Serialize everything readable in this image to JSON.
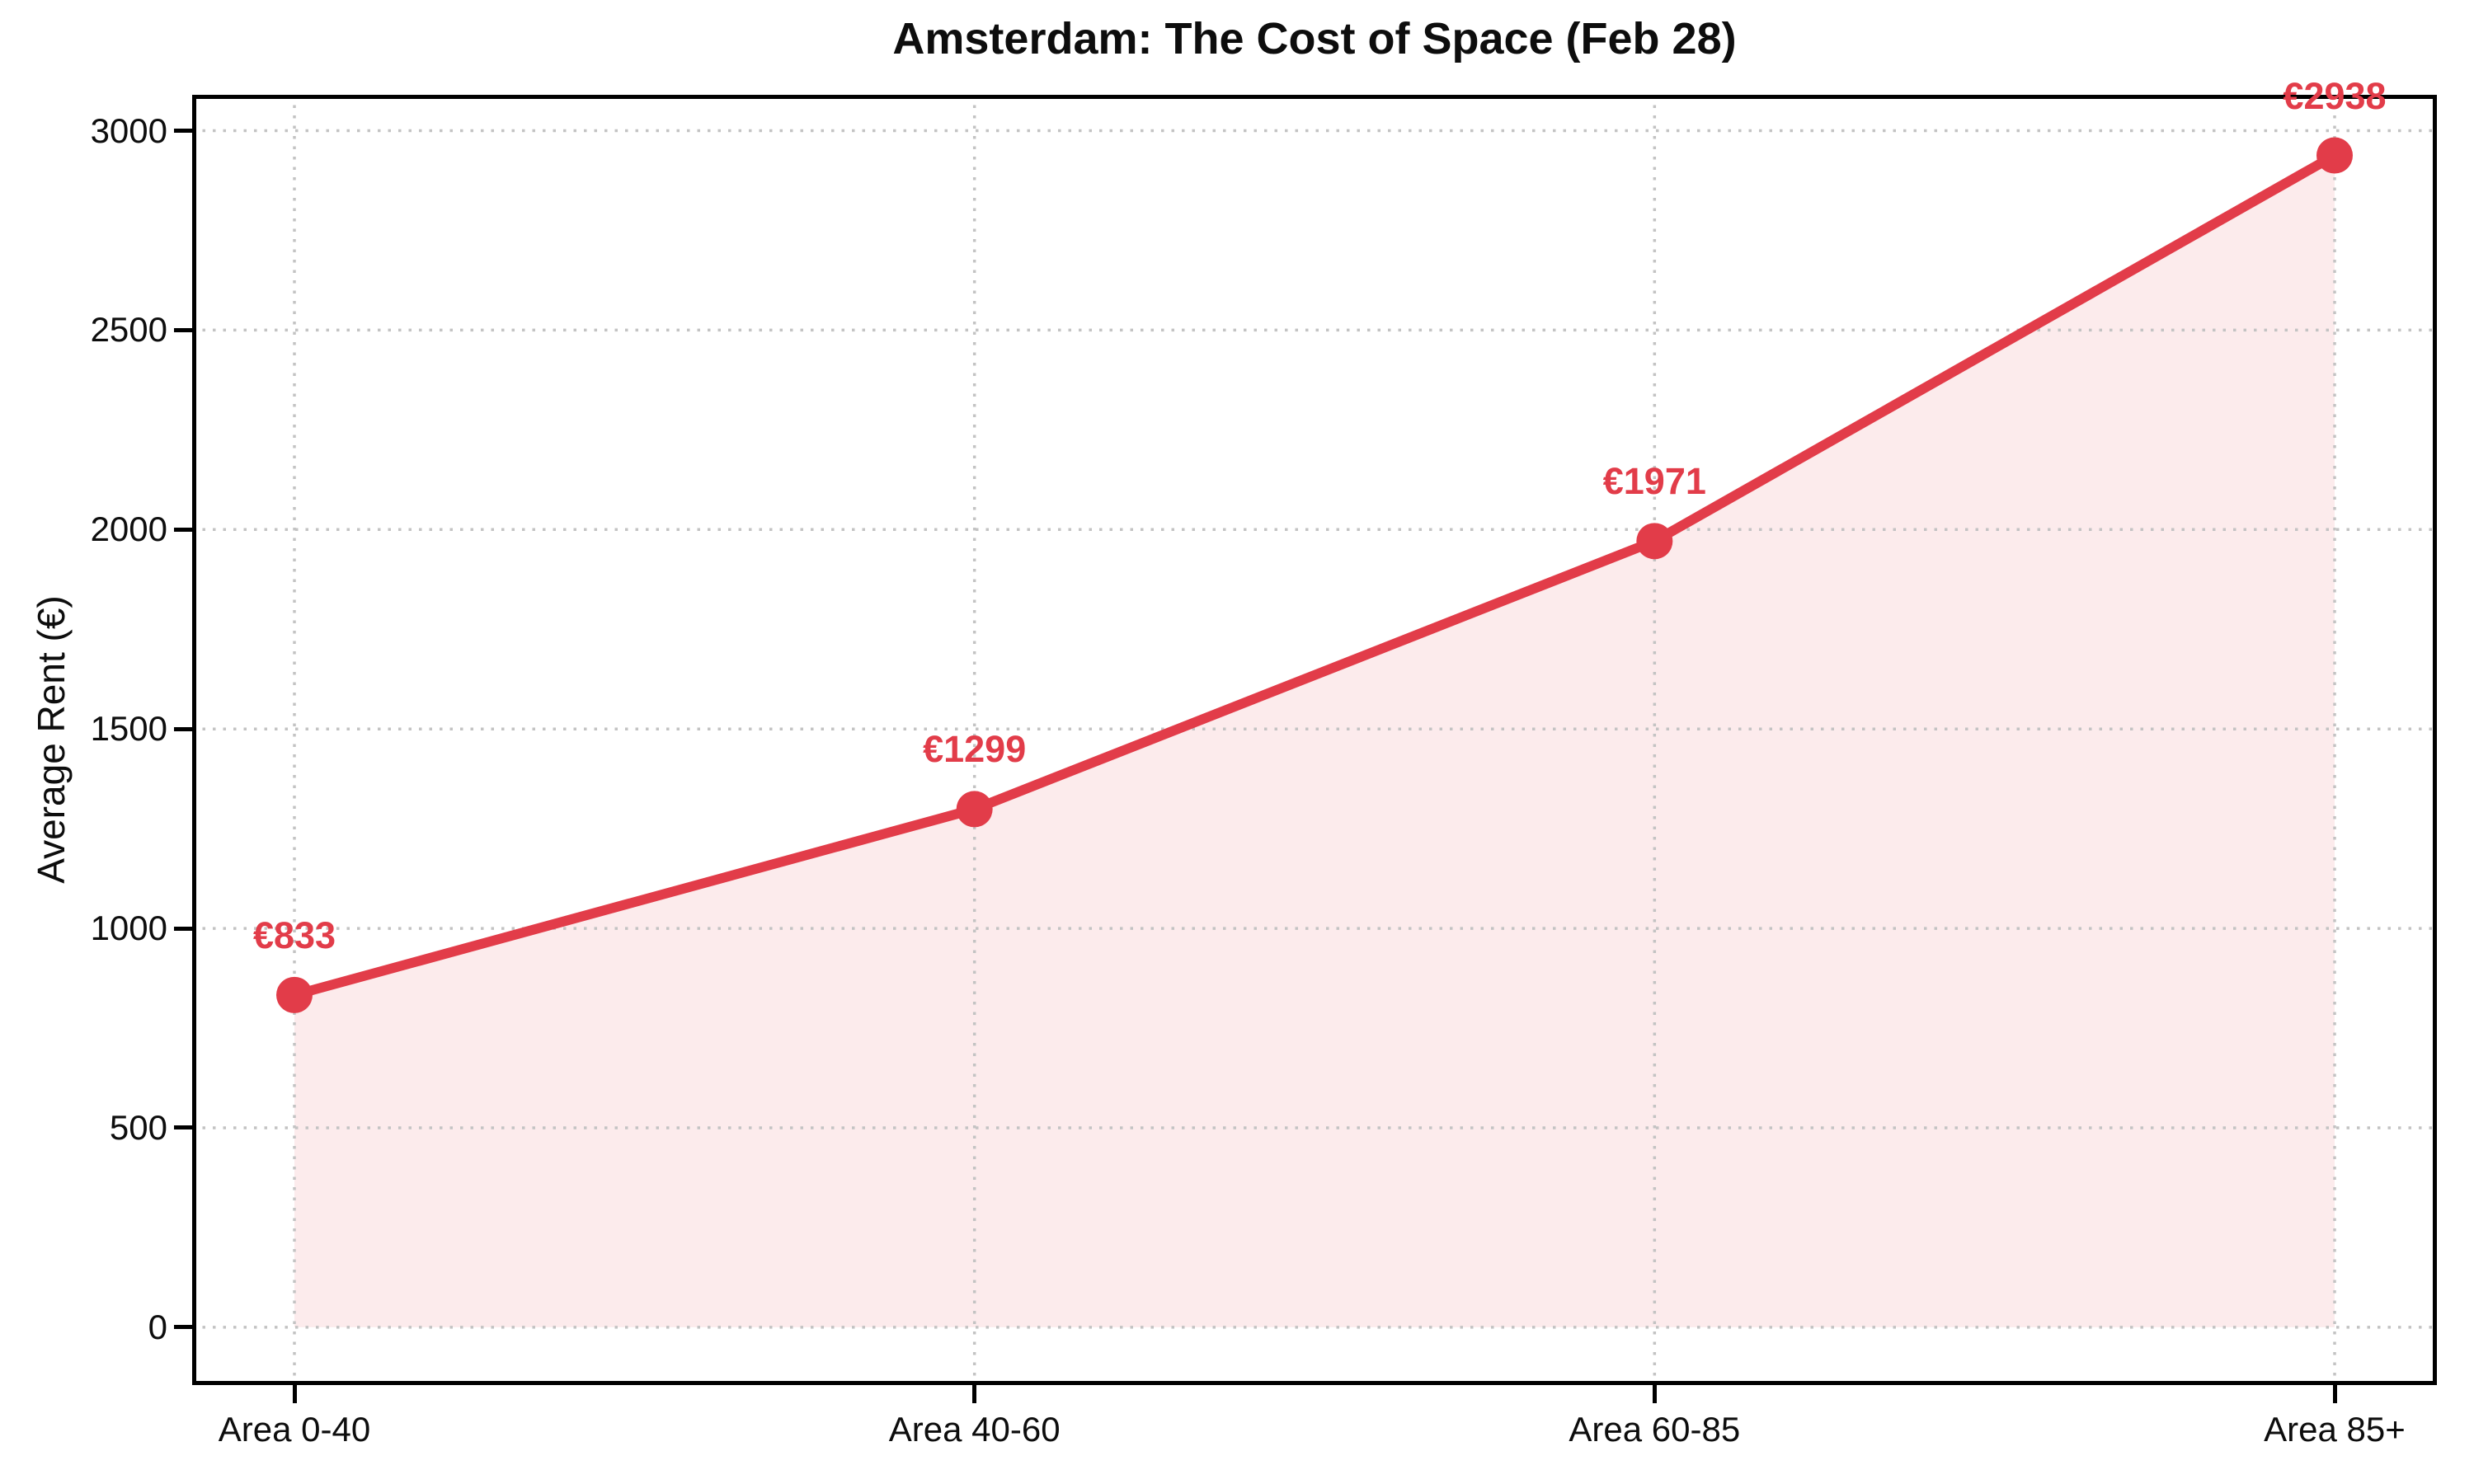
{
  "chart_data": {
    "type": "area",
    "title": "Amsterdam: The Cost of Space (Feb 28)",
    "xlabel": "",
    "ylabel": "Average Rent (€)",
    "categories": [
      "Area 0-40",
      "Area 40-60",
      "Area 60-85",
      "Area 85+"
    ],
    "values": [
      833,
      1299,
      1971,
      2938
    ],
    "point_labels": [
      "€833",
      "€1299",
      "€1971",
      "€2938"
    ],
    "yticks": [
      0,
      500,
      1000,
      1500,
      2000,
      2500,
      3000
    ],
    "ylim": [
      -145,
      3090
    ],
    "grid": {
      "visible": true,
      "style": "dotted",
      "axes": "both"
    },
    "legend": "none",
    "marker": "circle",
    "line_style": "solid",
    "colors": {
      "line": "#e23c49",
      "marker": "#e23c49",
      "fill": "rgba(226,60,73,0.10)",
      "label": "#e23c49",
      "grid": "#c3c3c3",
      "spine": "#000000",
      "text": "#0d0d0d",
      "background": "#ffffff"
    }
  }
}
